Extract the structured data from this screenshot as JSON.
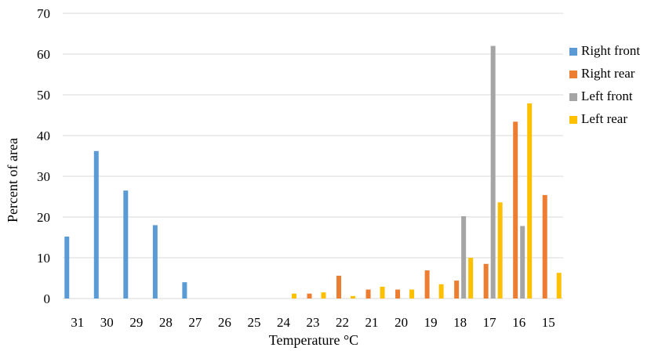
{
  "chart_data": {
    "type": "bar",
    "xlabel": "Temperature °C",
    "ylabel": "Percent  of  area",
    "ylim": [
      0,
      70
    ],
    "yticks": [
      0,
      10,
      20,
      30,
      40,
      50,
      60,
      70
    ],
    "grid": "horizontal",
    "legend_position": "right",
    "categories": [
      "31",
      "30",
      "29",
      "28",
      "27",
      "26",
      "25",
      "24",
      "23",
      "22",
      "21",
      "20",
      "19",
      "18",
      "17",
      "16",
      "15"
    ],
    "series": [
      {
        "name": "Right front",
        "color": "#5B9BD5",
        "values": [
          15.2,
          36.2,
          26.5,
          18.0,
          4.0,
          0,
          0,
          0,
          0,
          0,
          0,
          0,
          0,
          0,
          0,
          0,
          0
        ]
      },
      {
        "name": "Right rear",
        "color": "#ED7D31",
        "values": [
          0,
          0,
          0,
          0,
          0,
          0,
          0,
          0,
          1.2,
          5.6,
          2.2,
          2.2,
          6.9,
          4.4,
          8.5,
          43.4,
          25.4
        ]
      },
      {
        "name": "Left front",
        "color": "#A5A5A5",
        "values": [
          0,
          0,
          0,
          0,
          0,
          0,
          0,
          0,
          0,
          0,
          0,
          0,
          0,
          20.2,
          62.0,
          17.8,
          0
        ]
      },
      {
        "name": "Left rear",
        "color": "#FFC000",
        "values": [
          0,
          0,
          0,
          0,
          0,
          0,
          0,
          1.2,
          1.5,
          0.6,
          2.9,
          2.2,
          3.5,
          10.0,
          23.6,
          47.9,
          6.3
        ]
      }
    ]
  }
}
